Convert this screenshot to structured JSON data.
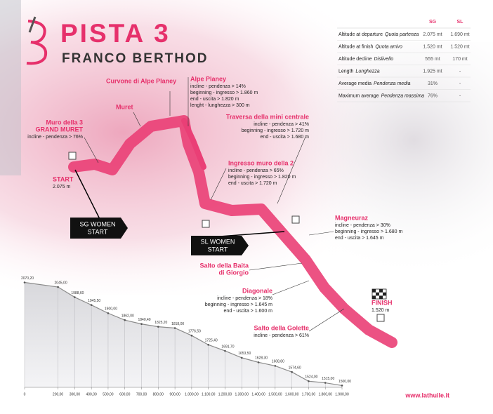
{
  "header": {
    "title": "PISTA 3",
    "subtitle": "FRANCO BERTHOD"
  },
  "table": {
    "columns": [
      "SG",
      "SL"
    ],
    "rows": [
      {
        "label": "Altitude at departure",
        "label_it": "Quota partenza",
        "values": [
          "2.075 mt",
          "1.690 mt"
        ]
      },
      {
        "label": "Altitude at finish",
        "label_it": "Quota arrivo",
        "values": [
          "1.520 mt",
          "1.520 mt"
        ]
      },
      {
        "label": "Altitude decline",
        "label_it": "Dislivello",
        "values": [
          "555 mt",
          "170 mt"
        ]
      },
      {
        "label": "Length",
        "label_it": "Lunghezza",
        "values": [
          "1.925 mt",
          "-"
        ]
      },
      {
        "label": "Average media",
        "label_it": "Pendenza media",
        "values": [
          "31%",
          "-"
        ]
      },
      {
        "label": "Maximum average",
        "label_it": "Pendenza massima",
        "values": [
          "76%",
          "-"
        ]
      }
    ]
  },
  "annotations": [
    {
      "title": [
        "Muro della 3",
        "GRAND MURET"
      ],
      "lines": [
        "incline - pendenza > 76%"
      ]
    },
    {
      "title": [
        "Muret"
      ],
      "lines": []
    },
    {
      "title": [
        "Curvone di Alpe Planey"
      ],
      "lines": []
    },
    {
      "title": [
        "Alpe Planey"
      ],
      "lines": [
        "incline - pendenza > 14%",
        "beginning - ingresso > 1.860 m",
        "end - uscita > 1.820 m",
        "lenght - lunghezza > 300 m"
      ]
    },
    {
      "title": [
        "Traversa della mini centrale"
      ],
      "lines": [
        "incline - pendenza > 41%",
        "beginning - ingresso > 1.720 m",
        "end - uscita > 1.680 m"
      ]
    },
    {
      "title": [
        "Ingresso muro della 2"
      ],
      "lines": [
        "incline - pendenza > 65%",
        "beginning - ingresso > 1.820 m",
        "end - uscita > 1.720 m"
      ]
    },
    {
      "title": [
        "Magneuraz"
      ],
      "lines": [
        "incline - pendenza > 30%",
        "beginning - ingresso > 1.680 m",
        "end - uscita > 1.645 m"
      ]
    },
    {
      "title": [
        "Salto della Baita",
        "di Giorgio"
      ],
      "lines": []
    },
    {
      "title": [
        "Diagonale"
      ],
      "lines": [
        "incline - pendenza > 18%",
        "beginning - ingresso > 1.645 m",
        "end - uscita > 1.600 m"
      ]
    },
    {
      "title": [
        "FINISH"
      ],
      "lines": [
        "1.520 m"
      ]
    },
    {
      "title": [
        "Salto della Golette"
      ],
      "lines": [
        "incline - pendenza > 61%"
      ]
    },
    {
      "title": [
        "START"
      ],
      "lines": [
        "2.075 m"
      ]
    }
  ],
  "markers": [
    {
      "label": [
        "SG WOMEN",
        "START"
      ]
    },
    {
      "label": [
        "SL WOMEN",
        "START"
      ]
    }
  ],
  "url": "www.lathuile.it",
  "chart_data": {
    "type": "area",
    "x": [
      0,
      200,
      300,
      400,
      500,
      600,
      700,
      800,
      900,
      1000,
      1100,
      1200,
      1300,
      1400,
      1500,
      1600,
      1700,
      1800,
      1900
    ],
    "values": [
      2070.2,
      2045,
      1988.6,
      1945.5,
      1900,
      1862,
      1840.4,
      1825.2,
      1818,
      1776.5,
      1725.4,
      1691.7,
      1653.5,
      1628.3,
      1608.8,
      1574.6,
      1524,
      1515,
      1500
    ],
    "value_labels": [
      "2070,20",
      "2045,00",
      "1988,60",
      "1945,50",
      "1900,00",
      "1862,00",
      "1840,40",
      "1825,20",
      "1818,00",
      "1776,50",
      "1725,40",
      "1691,70",
      "1653,50",
      "1628,30",
      "1608,80",
      "1574,60",
      "1524,00",
      "1515,00",
      "1500,00"
    ],
    "color": "#8a8a8a",
    "xlim": [
      0,
      1900
    ],
    "ylim": [
      1490,
      2080
    ],
    "xticks": [
      0,
      {
        "value": 200,
        "label": "200,00"
      },
      {
        "value": 300,
        "label": "300,00"
      },
      {
        "value": 400,
        "label": "400,00"
      },
      {
        "value": 500,
        "label": "500,00"
      },
      {
        "value": 600,
        "label": "600,00"
      },
      {
        "value": 700,
        "label": "700,00"
      },
      {
        "value": 800,
        "label": "800,00"
      },
      {
        "value": 900,
        "label": "900,00"
      },
      {
        "value": 1000,
        "label": "1.000,00"
      },
      {
        "value": 1100,
        "label": "1.100,00"
      },
      {
        "value": 1200,
        "label": "1.200,00"
      },
      {
        "value": 1300,
        "label": "1.300,00"
      },
      {
        "value": 1400,
        "label": "1.400,00"
      },
      {
        "value": 1500,
        "label": "1.500,00"
      },
      {
        "value": 1600,
        "label": "1.600,00"
      },
      {
        "value": 1700,
        "label": "1.700,00"
      },
      {
        "value": 1800,
        "label": "1.800,00"
      },
      {
        "value": 1900,
        "label": "1.900,00"
      }
    ]
  }
}
